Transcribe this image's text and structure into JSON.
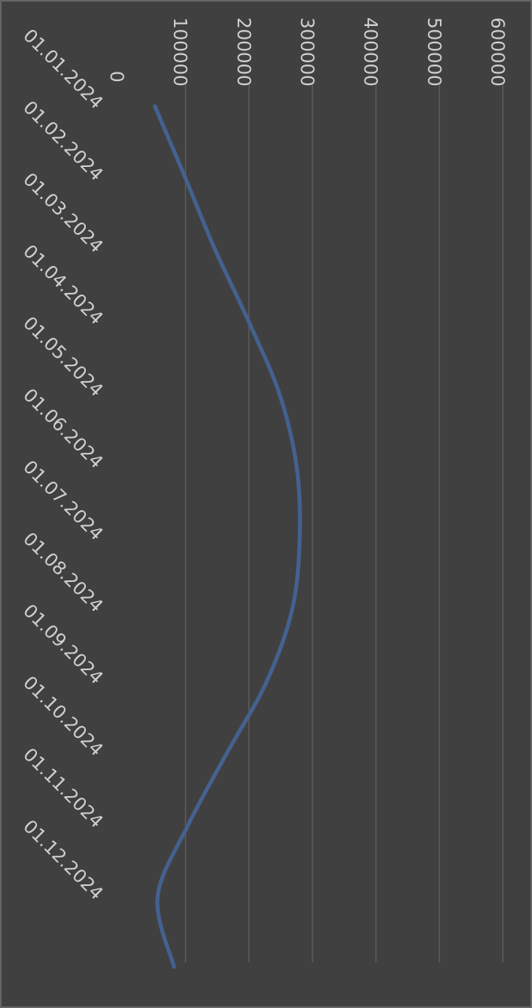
{
  "chart_data": {
    "type": "line",
    "orientation": "rotated-90-clockwise",
    "title": "",
    "xlabel": "",
    "ylabel": "",
    "categories": [
      "01.01.2024",
      "01.02.2024",
      "01.03.2024",
      "01.04.2024",
      "01.05.2024",
      "01.06.2024",
      "01.07.2024",
      "01.08.2024",
      "01.09.2024",
      "01.10.2024",
      "01.11.2024",
      "01.12.2024"
    ],
    "y_ticks": [
      "0",
      "100000",
      "200000",
      "300000",
      "400000",
      "500000",
      "600000"
    ],
    "ylim": [
      0,
      600000
    ],
    "grid": true,
    "legend": "none",
    "series": [
      {
        "values": [
          52000,
          100000,
          147000,
          200000,
          248000,
          275000,
          280000,
          268000,
          228000,
          165000,
          104000,
          56000
        ],
        "end_value": 82000,
        "color": "#44618f"
      }
    ],
    "colors": {
      "background": "#404040",
      "frame": "#666666",
      "gridline": "#5c5c5c",
      "text": "#cfcfcf",
      "line": "#44618f"
    }
  }
}
